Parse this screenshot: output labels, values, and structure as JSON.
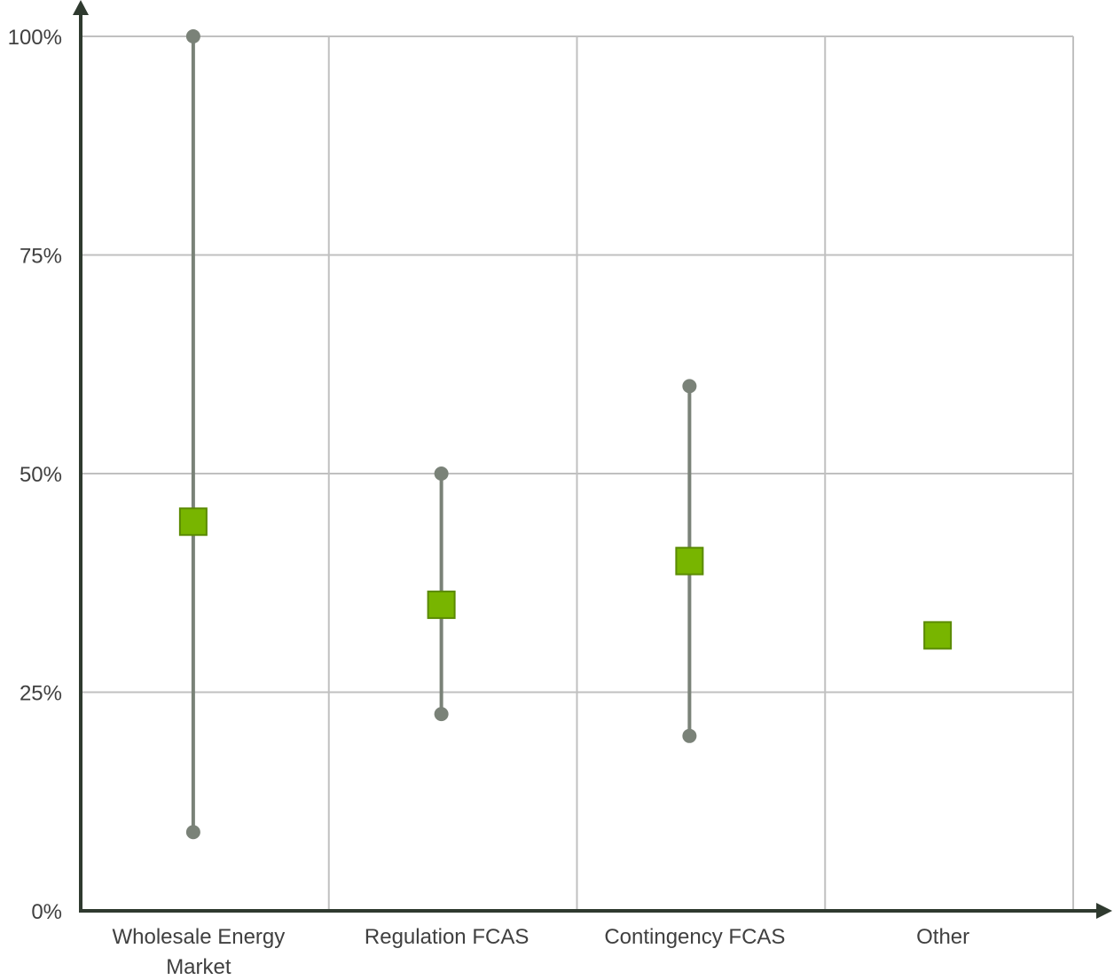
{
  "chart_data": {
    "type": "scatter",
    "title": "",
    "xlabel": "",
    "ylabel": "",
    "ylim": [
      0,
      100
    ],
    "y_ticks": [
      "0%",
      "25%",
      "50%",
      "75%",
      "100%"
    ],
    "y_tick_values": [
      0,
      25,
      50,
      75,
      100
    ],
    "grid": true,
    "categories": [
      [
        "Wholesale Energy",
        "Market"
      ],
      [
        "Regulation FCAS"
      ],
      [
        "Contingency FCAS"
      ],
      [
        "Other"
      ]
    ],
    "points": [
      {
        "category": 0,
        "mid": 44.5,
        "low": 9,
        "high": 100
      },
      {
        "category": 1,
        "mid": 35,
        "low": 22.5,
        "high": 50
      },
      {
        "category": 2,
        "mid": 40,
        "low": 20,
        "high": 60
      },
      {
        "category": 3,
        "mid": 31.5,
        "low": null,
        "high": null
      }
    ],
    "colors": {
      "marker_fill": "#78b500",
      "marker_stroke": "#5a8a00",
      "range_line": "#7a8278",
      "grid": "#c0c0c0",
      "axis": "#2f3a2f"
    }
  }
}
